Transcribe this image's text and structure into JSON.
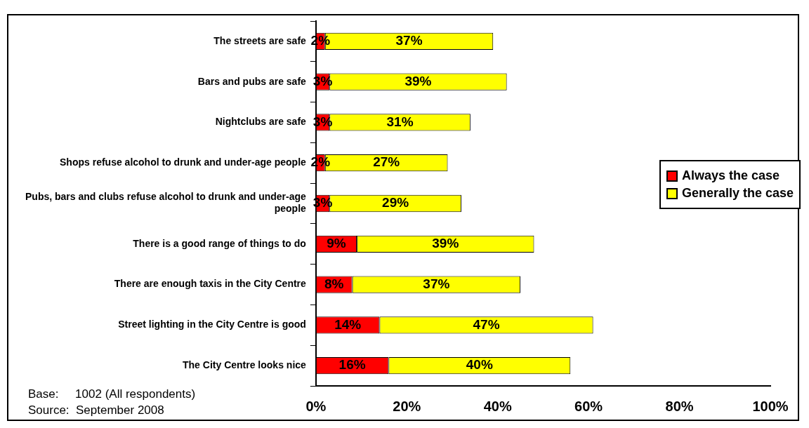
{
  "chart_data": {
    "type": "bar",
    "orientation": "horizontal",
    "stacked": true,
    "categories": [
      "The streets are safe",
      "Bars and pubs are safe",
      "Nightclubs are safe",
      "Shops refuse alcohol to drunk and under-age people",
      "Pubs, bars and clubs refuse alcohol to drunk and under-age people",
      "There is a good range of things to do",
      "There are enough taxis in the City Centre",
      "Street lighting in the City Centre is good",
      "The City Centre looks nice"
    ],
    "series": [
      {
        "name": "Always the case",
        "color": "#ff0000",
        "values": [
          2,
          3,
          3,
          2,
          3,
          9,
          8,
          14,
          16
        ],
        "value_labels": [
          "2%",
          "3%",
          "3%",
          "2%",
          "3%",
          "9%",
          "8%",
          "14%",
          "16%"
        ]
      },
      {
        "name": "Generally the case",
        "color": "#ffff00",
        "values": [
          37,
          39,
          31,
          27,
          29,
          39,
          37,
          47,
          40
        ],
        "value_labels": [
          "37%",
          "39%",
          "31%",
          "27%",
          "29%",
          "39%",
          "37%",
          "47%",
          "40%"
        ]
      }
    ],
    "xlim": [
      0,
      100
    ],
    "xticks": [
      {
        "value": 0,
        "label": "0%"
      },
      {
        "value": 20,
        "label": "20%"
      },
      {
        "value": 40,
        "label": "40%"
      },
      {
        "value": 60,
        "label": "60%"
      },
      {
        "value": 80,
        "label": "80%"
      },
      {
        "value": 100,
        "label": "100%"
      }
    ],
    "grid": false,
    "legend": "right",
    "annotations": [
      "Base:     1002 (All respondents)",
      "Source:  September 2008"
    ]
  }
}
